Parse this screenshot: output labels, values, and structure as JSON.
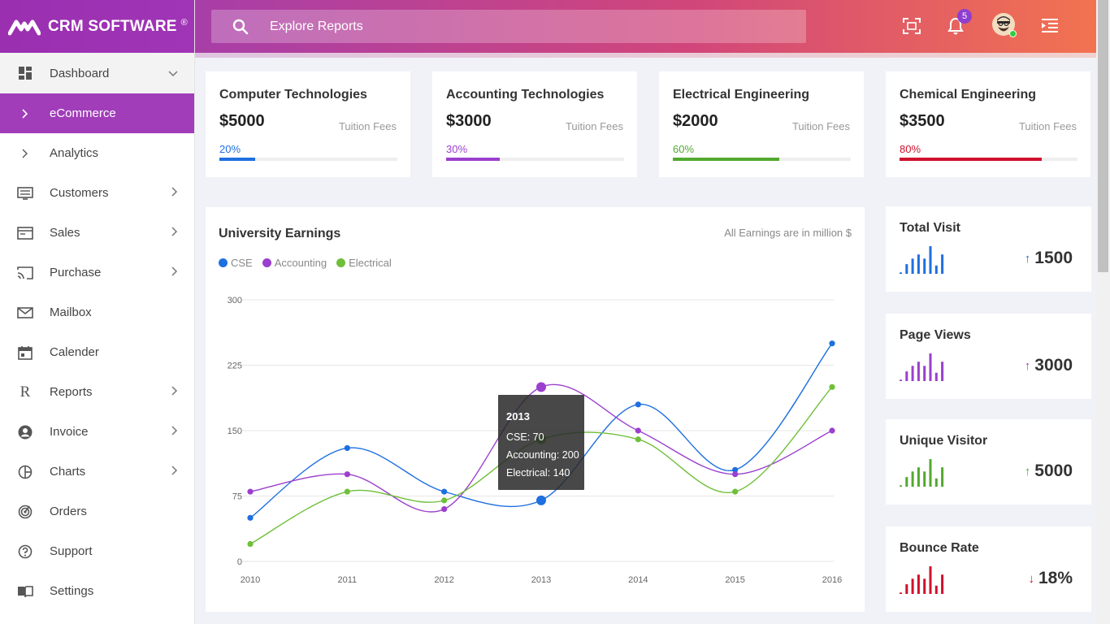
{
  "brand": {
    "name": "CRM SOFTWARE",
    "mark": "®"
  },
  "search": {
    "placeholder": "Explore Reports"
  },
  "topbar": {
    "notification_count": "5"
  },
  "sidebar": {
    "items": [
      {
        "label": "Dashboard",
        "icon": "dashboard-icon"
      },
      {
        "label": "eCommerce",
        "icon": "chevron-right-icon"
      },
      {
        "label": "Analytics",
        "icon": "chevron-right-icon"
      },
      {
        "label": "Customers",
        "icon": "customers-icon"
      },
      {
        "label": "Sales",
        "icon": "sales-icon"
      },
      {
        "label": "Purchase",
        "icon": "purchase-icon"
      },
      {
        "label": "Mailbox",
        "icon": "mail-icon"
      },
      {
        "label": "Calender",
        "icon": "calendar-icon"
      },
      {
        "label": "Reports",
        "icon": "reports-icon"
      },
      {
        "label": "Invoice",
        "icon": "invoice-icon"
      },
      {
        "label": "Charts",
        "icon": "charts-icon"
      },
      {
        "label": "Orders",
        "icon": "orders-icon"
      },
      {
        "label": "Support",
        "icon": "support-icon"
      },
      {
        "label": "Settings",
        "icon": "settings-icon"
      }
    ]
  },
  "tuition_cards": [
    {
      "title": "Computer Technologies",
      "amount": "$5000",
      "sub": "Tuition Fees",
      "percent_label": "20%",
      "progress": 0.2,
      "color": "#1e6fe0"
    },
    {
      "title": "Accounting Technologies",
      "amount": "$3000",
      "sub": "Tuition Fees",
      "percent_label": "30%",
      "progress": 0.3,
      "color": "#9b3fce"
    },
    {
      "title": "Electrical Engineering",
      "amount": "$2000",
      "sub": "Tuition Fees",
      "percent_label": "60%",
      "progress": 0.6,
      "color": "#52a92e"
    },
    {
      "title": "Chemical Engineering",
      "amount": "$3500",
      "sub": "Tuition Fees",
      "percent_label": "80%",
      "progress": 0.8,
      "color": "#d0102c"
    }
  ],
  "earnings": {
    "title": "University Earnings",
    "note": "All Earnings are in million $",
    "tooltip": {
      "title": "2013",
      "lines": [
        "CSE: 70",
        "Accounting: 200",
        "Electrical: 140"
      ]
    }
  },
  "chart_data": {
    "type": "line",
    "title": "University Earnings",
    "x": [
      "2010",
      "2011",
      "2012",
      "2013",
      "2014",
      "2015",
      "2016"
    ],
    "ylim": [
      0,
      300
    ],
    "yticks": [
      "0",
      "75",
      "150",
      "225",
      "300"
    ],
    "grid": true,
    "legend": "top-left",
    "series": [
      {
        "name": "CSE",
        "color": "#1e6fe0",
        "values": [
          50,
          130,
          80,
          70,
          180,
          105,
          250
        ]
      },
      {
        "name": "Accounting",
        "color": "#9b3fce",
        "values": [
          80,
          100,
          60,
          200,
          150,
          100,
          150
        ]
      },
      {
        "name": "Electrical",
        "color": "#6fbf3a",
        "values": [
          20,
          80,
          70,
          140,
          140,
          80,
          200
        ]
      }
    ]
  },
  "stat_cards": [
    {
      "title": "Total Visit",
      "value": "1500",
      "direction": "up",
      "color": "#1e6fe0",
      "bars": [
        0.05,
        0.35,
        0.55,
        0.7,
        0.55,
        1.0,
        0.3,
        0.7
      ]
    },
    {
      "title": "Page Views",
      "value": "3000",
      "direction": "up",
      "color": "#9b3fce",
      "bars": [
        0.05,
        0.35,
        0.55,
        0.7,
        0.55,
        1.0,
        0.3,
        0.7
      ]
    },
    {
      "title": "Unique Visitor",
      "value": "5000",
      "direction": "up",
      "color": "#52a92e",
      "bars": [
        0.05,
        0.35,
        0.55,
        0.7,
        0.55,
        1.0,
        0.3,
        0.7
      ]
    },
    {
      "title": "Bounce Rate",
      "value": "18%",
      "direction": "down",
      "color": "#d0102c",
      "bars": [
        0.05,
        0.35,
        0.55,
        0.7,
        0.55,
        1.0,
        0.3,
        0.7
      ]
    }
  ]
}
